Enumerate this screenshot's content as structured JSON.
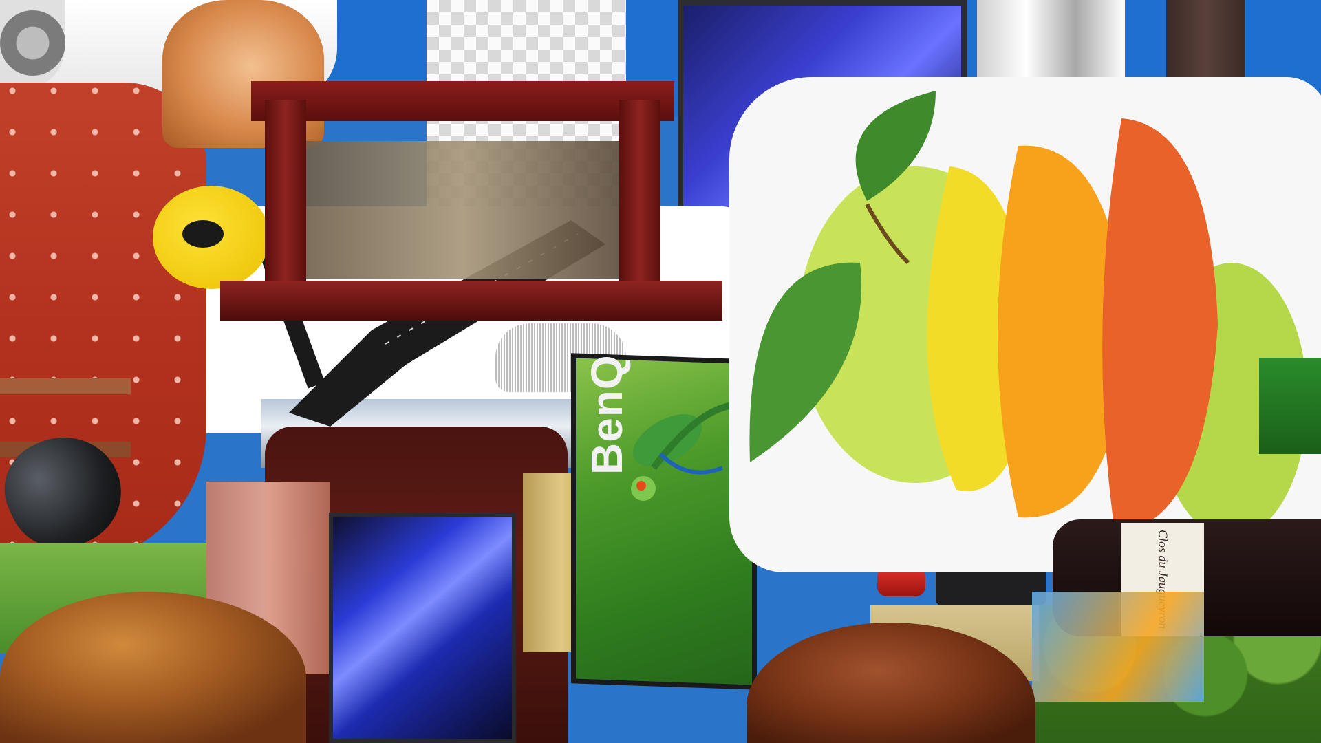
{
  "scene": {
    "brand_text": "BenQ",
    "bottle_label_text": "Clos du Jaugueyron"
  },
  "colors": {
    "sky": "#1f6fd0",
    "monitor_blue": "#3a3fd0",
    "benq_green": "#4c9a2a",
    "strawberry_red": "#b3321e",
    "wood_red": "#8b1d1b",
    "apple_green": "#bfe055",
    "orange": "#f7a21a"
  },
  "objects": [
    {
      "name": "car",
      "icon": "car-icon"
    },
    {
      "name": "cat",
      "icon": "cat-icon"
    },
    {
      "name": "strawberry",
      "icon": "strawberry-icon"
    },
    {
      "name": "guitar",
      "icon": "guitar-icon"
    },
    {
      "name": "wooden-frame",
      "icon": "frame-icon"
    },
    {
      "name": "monitor",
      "icon": "monitor-icon"
    },
    {
      "name": "benq-monitor",
      "icon": "monitor-icon"
    },
    {
      "name": "fruit-stack",
      "icon": "fruit-icon"
    },
    {
      "name": "computer-mouse",
      "icon": "mouse-icon"
    },
    {
      "name": "dates",
      "icon": "date-fruit-icon"
    },
    {
      "name": "wine-bottle",
      "icon": "bottle-icon"
    },
    {
      "name": "mesh-chair",
      "icon": "chair-icon"
    },
    {
      "name": "frog",
      "icon": "frog-icon"
    }
  ]
}
